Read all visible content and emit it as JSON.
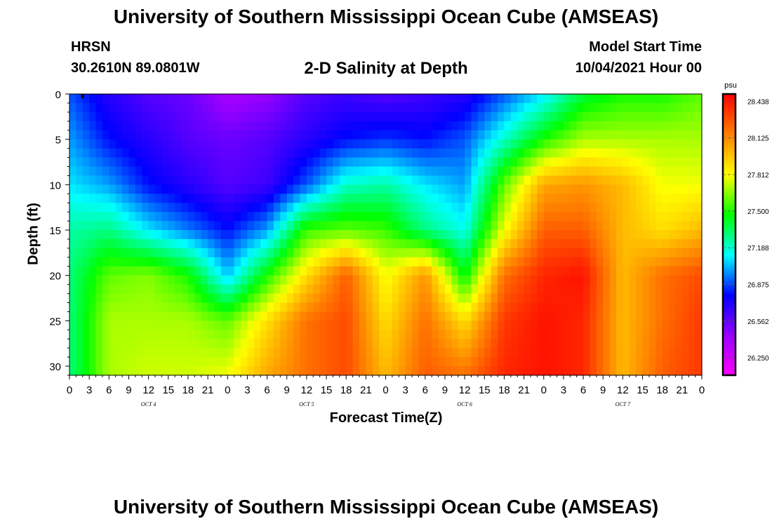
{
  "page": {
    "title_top": "University of Southern Mississippi Ocean Cube (AMSEAS)",
    "title_bottom": "University of Southern Mississippi Ocean Cube (AMSEAS)",
    "station": "HRSN",
    "coords": "30.2610N  89.0801W",
    "subtitle": "2-D Salinity at Depth",
    "start_label": "Model Start Time",
    "start_value": "10/04/2021 Hour 00"
  },
  "chart_data": {
    "type": "heatmap",
    "xlabel": "Forecast Time(Z)",
    "ylabel": "Depth (ft)",
    "colorbar_unit": "psu",
    "colorbar_ticks": [
      26.25,
      26.562,
      26.875,
      27.188,
      27.5,
      27.812,
      28.125,
      28.438
    ],
    "colorbar_tick_labels": [
      "26.250",
      "26.562",
      "26.875",
      "27.188",
      "27.500",
      "27.812",
      "28.125",
      "28.438"
    ],
    "color_range": [
      26.1,
      28.5
    ],
    "colormap": [
      "#ff00ff",
      "#9b00ff",
      "#0000ff",
      "#00ffff",
      "#00ff00",
      "#ffff00",
      "#ff8000",
      "#ff0000"
    ],
    "x_hours_range": [
      0,
      96
    ],
    "x_tick_labels": [
      "0",
      "3",
      "6",
      "9",
      "12",
      "15",
      "18",
      "21",
      "0",
      "3",
      "6",
      "9",
      "12",
      "15",
      "18",
      "21",
      "0",
      "3",
      "6",
      "9",
      "12",
      "15",
      "18",
      "21",
      "0",
      "3",
      "6",
      "9",
      "12",
      "15",
      "18",
      "21",
      "0"
    ],
    "x_day_labels": [
      "OCT 4",
      "OCT 5",
      "OCT 6",
      "OCT 7"
    ],
    "ylim": [
      31,
      0
    ],
    "y_tick_values": [
      0,
      5,
      10,
      15,
      20,
      25,
      30
    ],
    "y_tick_labels": [
      "0",
      "5",
      "10",
      "15",
      "20",
      "25",
      "30"
    ],
    "depth_levels": [
      0,
      5,
      10,
      15,
      20,
      25,
      31
    ],
    "time_hours": [
      0,
      6,
      12,
      18,
      24,
      30,
      36,
      42,
      48,
      54,
      60,
      66,
      72,
      78,
      84,
      90,
      96
    ],
    "salinity": [
      [
        26.9,
        26.7,
        26.6,
        26.55,
        26.4,
        26.45,
        26.6,
        26.65,
        26.6,
        26.65,
        26.7,
        26.9,
        27.1,
        27.4,
        27.5,
        27.5,
        27.6
      ],
      [
        27.0,
        26.8,
        26.7,
        26.6,
        26.55,
        26.6,
        26.7,
        26.8,
        26.85,
        26.8,
        26.9,
        27.2,
        27.5,
        27.7,
        27.7,
        27.7,
        27.7
      ],
      [
        27.1,
        27.0,
        26.8,
        26.7,
        26.6,
        26.65,
        26.9,
        27.2,
        27.25,
        27.1,
        27.0,
        27.6,
        28.05,
        28.1,
        28.0,
        27.8,
        27.8
      ],
      [
        27.25,
        27.3,
        27.1,
        26.95,
        26.8,
        27.0,
        27.55,
        27.6,
        27.55,
        27.3,
        27.15,
        27.8,
        28.25,
        28.25,
        28.0,
        27.9,
        28.0
      ],
      [
        27.3,
        27.6,
        27.65,
        27.5,
        27.05,
        27.5,
        27.9,
        28.25,
        27.8,
        28.1,
        27.45,
        28.2,
        28.4,
        28.45,
        28.0,
        28.2,
        28.3
      ],
      [
        27.3,
        27.7,
        27.7,
        27.7,
        27.6,
        27.9,
        28.2,
        28.3,
        27.9,
        28.2,
        27.9,
        28.35,
        28.45,
        28.4,
        28.0,
        28.2,
        28.35
      ],
      [
        27.3,
        27.7,
        27.75,
        27.75,
        27.8,
        28.05,
        28.2,
        28.3,
        28.0,
        28.25,
        28.2,
        28.4,
        28.45,
        28.4,
        28.0,
        28.25,
        28.35
      ]
    ]
  }
}
